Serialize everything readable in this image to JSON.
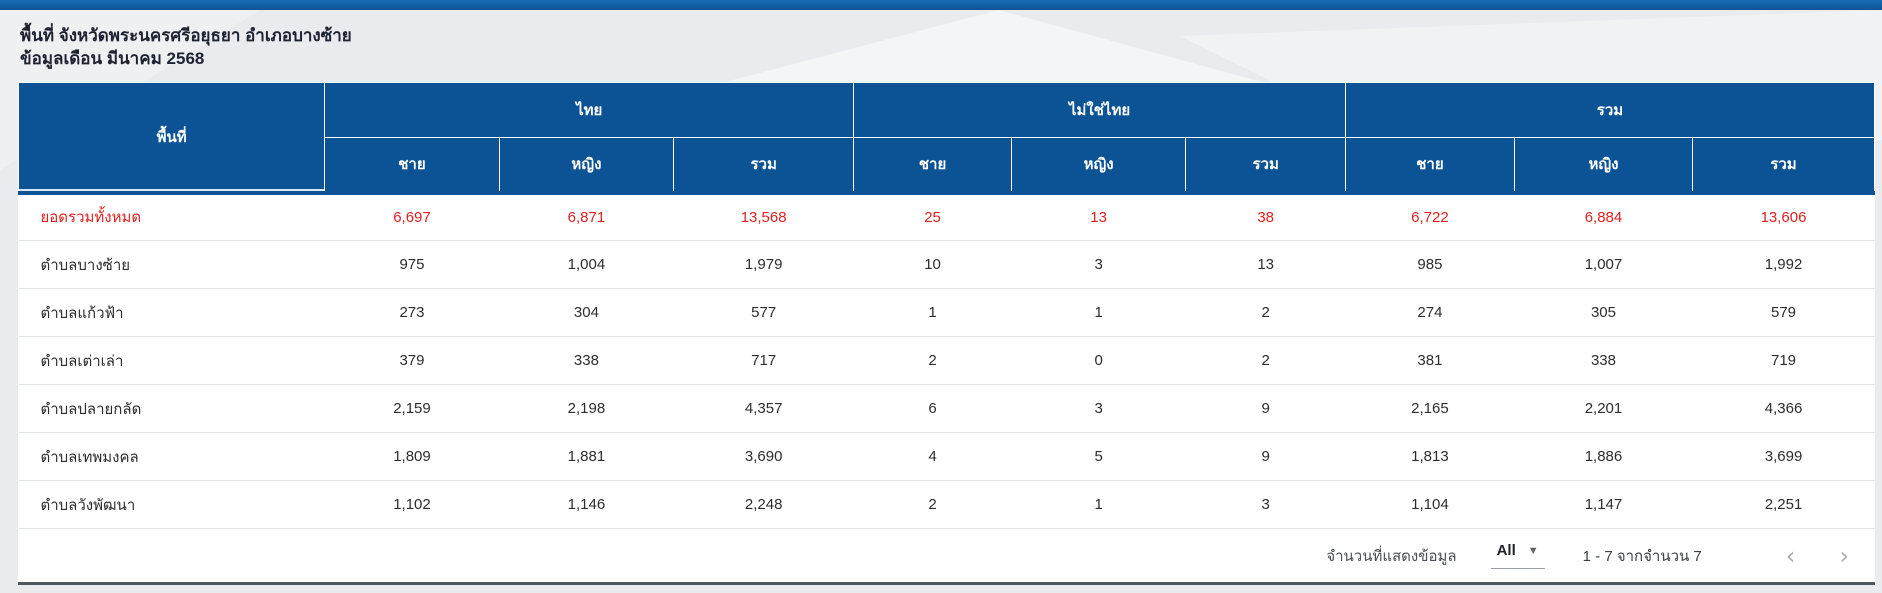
{
  "page": {
    "title_line1": "พื้นที่ จังหวัดพระนครศรีอยุธยา อำเภอบางซ้าย",
    "title_line2": "ข้อมูลเดือน มีนาคม 2568"
  },
  "table": {
    "area_header": "พื้นที่",
    "groups": [
      {
        "label": "ไทย"
      },
      {
        "label": "ไม่ใช่ไทย"
      },
      {
        "label": "รวม"
      }
    ],
    "sub_headers": [
      "ชาย",
      "หญิง",
      "รวม",
      "ชาย",
      "หญิง",
      "รวม",
      "ชาย",
      "หญิง",
      "รวม"
    ],
    "rows": [
      {
        "area": "ยอดรวมทั้งหมด",
        "highlight": true,
        "values": [
          "6,697",
          "6,871",
          "13,568",
          "25",
          "13",
          "38",
          "6,722",
          "6,884",
          "13,606"
        ]
      },
      {
        "area": "ตำบลบางซ้าย",
        "highlight": false,
        "values": [
          "975",
          "1,004",
          "1,979",
          "10",
          "3",
          "13",
          "985",
          "1,007",
          "1,992"
        ]
      },
      {
        "area": "ตำบลแก้วฟ้า",
        "highlight": false,
        "values": [
          "273",
          "304",
          "577",
          "1",
          "1",
          "2",
          "274",
          "305",
          "579"
        ]
      },
      {
        "area": "ตำบลเต่าเล่า",
        "highlight": false,
        "values": [
          "379",
          "338",
          "717",
          "2",
          "0",
          "2",
          "381",
          "338",
          "719"
        ]
      },
      {
        "area": "ตำบลปลายกลัด",
        "highlight": false,
        "values": [
          "2,159",
          "2,198",
          "4,357",
          "6",
          "3",
          "9",
          "2,165",
          "2,201",
          "4,366"
        ]
      },
      {
        "area": "ตำบลเทพมงคล",
        "highlight": false,
        "values": [
          "1,809",
          "1,881",
          "3,690",
          "4",
          "5",
          "9",
          "1,813",
          "1,886",
          "3,699"
        ]
      },
      {
        "area": "ตำบลวังพัฒนา",
        "highlight": false,
        "values": [
          "1,102",
          "1,146",
          "2,248",
          "2",
          "1",
          "3",
          "1,104",
          "1,147",
          "2,251"
        ]
      }
    ]
  },
  "pagination": {
    "rows_per_page_label": "จำนวนที่แสดงข้อมูล",
    "rows_per_page_value": "All",
    "dropdown_arrow": "▼",
    "range_label": "1 - 7 จากจำนวน 7",
    "prev_icon": "‹",
    "next_icon": "›"
  },
  "colors": {
    "header_bg": "#0b5394",
    "topbar_accent": "#0b5394",
    "highlight_red": "#e01f1f",
    "page_bg": "#e9ebee"
  }
}
